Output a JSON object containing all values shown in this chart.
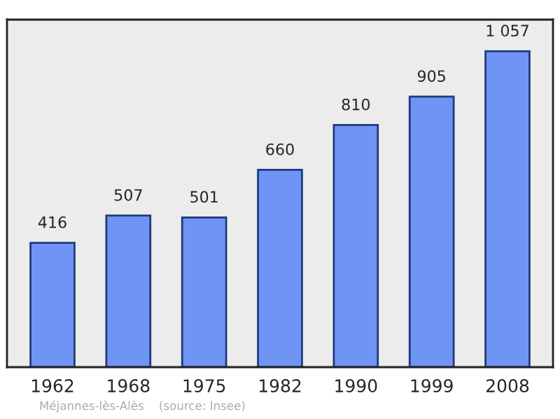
{
  "chart_data": {
    "type": "bar",
    "categories": [
      "1962",
      "1968",
      "1975",
      "1982",
      "1990",
      "1999",
      "2008"
    ],
    "values": [
      416,
      507,
      501,
      660,
      810,
      905,
      1057
    ],
    "value_labels": [
      "416",
      "507",
      "501",
      "660",
      "810",
      "905",
      "1 057"
    ],
    "color": "#7094f5",
    "annotations": [
      "Méjannes-lès-Alès    (source: Insee)"
    ]
  }
}
